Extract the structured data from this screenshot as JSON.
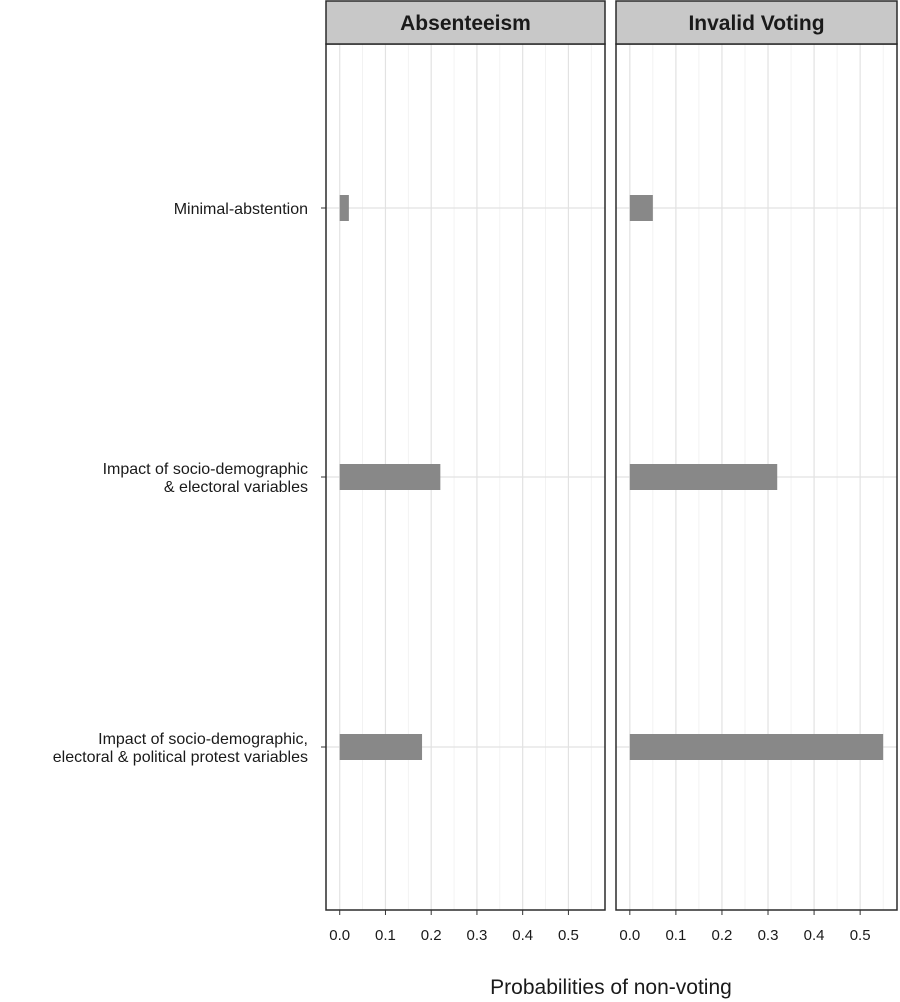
{
  "chart_data": {
    "type": "bar",
    "orientation": "horizontal",
    "facet_titles": [
      "Absenteeism",
      "Invalid Voting"
    ],
    "categories": [
      [
        "Minimal-abstention"
      ],
      [
        "Impact of socio-demographic",
        "& electoral variables"
      ],
      [
        "Impact of socio-demographic,",
        "electoral & political protest variables"
      ]
    ],
    "series": [
      {
        "values": [
          0.02,
          0.22,
          0.18
        ]
      },
      {
        "values": [
          0.05,
          0.32,
          0.55
        ]
      }
    ],
    "xlabel": "Probabilities of non-voting",
    "xlim": [
      -0.03,
      0.58
    ],
    "xticks": [
      "0.0",
      "0.1",
      "0.2",
      "0.3",
      "0.4",
      "0.5"
    ],
    "grid": true,
    "legend": "none",
    "colors": {
      "bar": "#888888",
      "strip": "#c8c8c8",
      "grid": "#e2e2e2",
      "frame": "#2b2b2b"
    }
  }
}
